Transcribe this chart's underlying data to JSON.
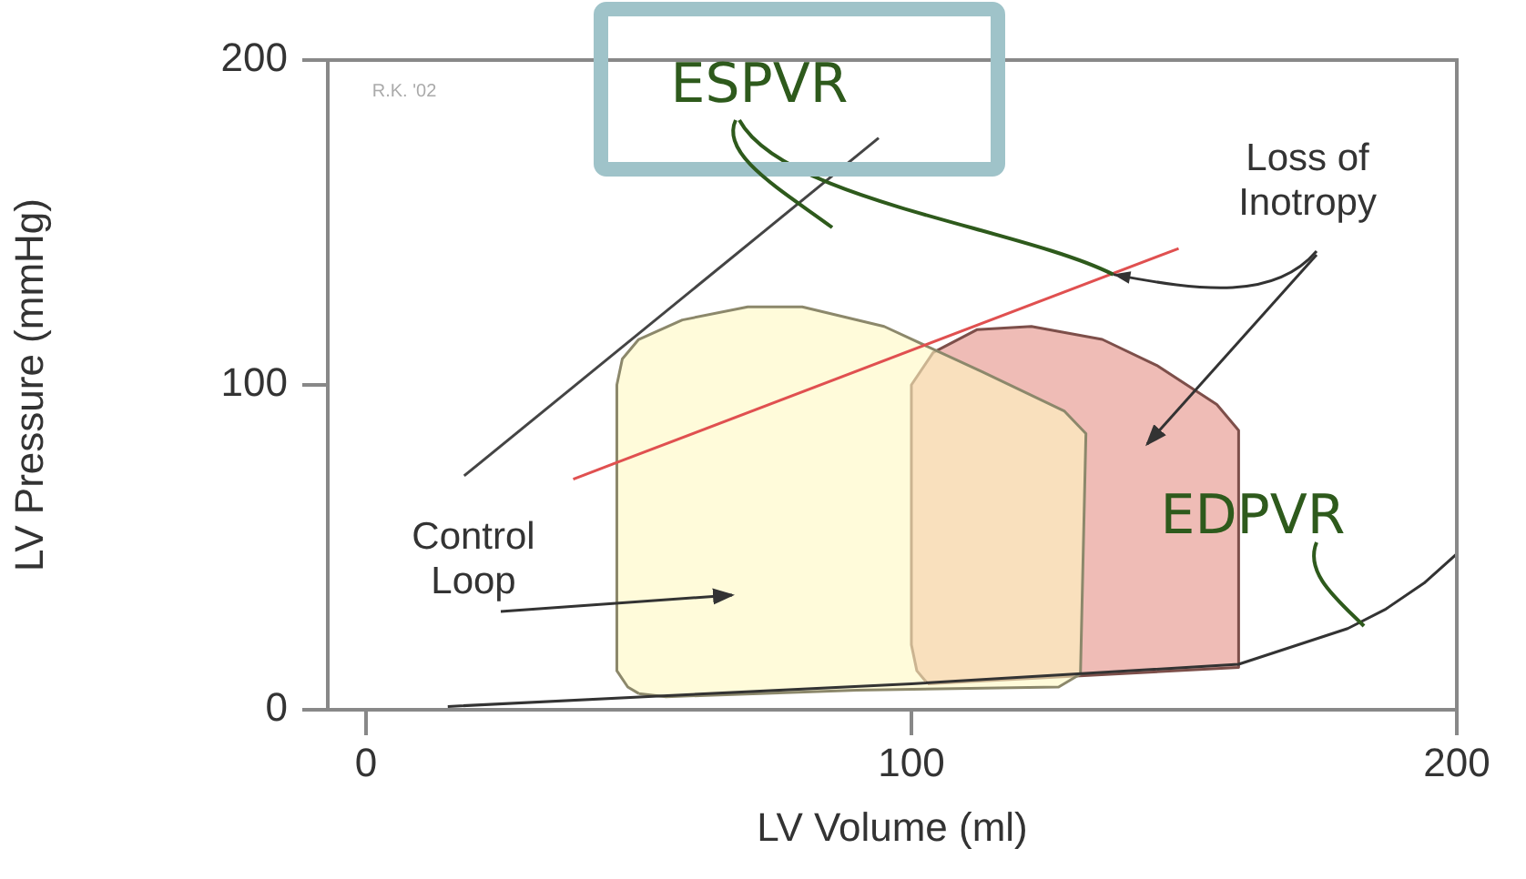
{
  "chart_data": {
    "type": "line",
    "xlabel": "LV Volume (ml)",
    "ylabel": "LV Pressure (mmHg)",
    "xlim": [
      -7,
      200
    ],
    "xticks": [
      0,
      100,
      200
    ],
    "ylim": [
      0,
      200
    ],
    "yticks": [
      0,
      100,
      200
    ],
    "grid": false,
    "legend": false,
    "marker": "none",
    "series": [
      {
        "type": "area",
        "color": "#e48f86",
        "x": [
          103,
          160,
          160,
          156,
          145,
          135,
          122,
          112,
          104,
          100,
          100,
          101,
          103
        ],
        "values": [
          8,
          13,
          86,
          94,
          106,
          114,
          118,
          117,
          110,
          100,
          20,
          12,
          8
        ]
      },
      {
        "type": "area",
        "color": "#fff8c2",
        "x": [
          50,
          55,
          90,
          127,
          131,
          132,
          128,
          113,
          95,
          80,
          70,
          58,
          50,
          47,
          46,
          46,
          48,
          50
        ],
        "values": [
          5,
          4,
          6,
          7,
          11,
          85,
          92,
          104,
          118,
          124,
          124,
          120,
          114,
          108,
          100,
          12,
          7,
          5
        ]
      },
      {
        "color": "#444444",
        "x": [
          18,
          94
        ],
        "values": [
          72,
          176
        ]
      },
      {
        "color": "#e05050",
        "x": [
          38,
          149
        ],
        "values": [
          71,
          142
        ]
      },
      {
        "color": "#333333",
        "x": [
          15,
          51,
          100,
          160,
          180,
          187,
          194,
          200
        ],
        "values": [
          1,
          4,
          8,
          14,
          25,
          31,
          39,
          48
        ]
      }
    ],
    "annotations": [
      "Control Loop",
      {
        "text": "Loss of Inotropy",
        "x": 137,
        "y": 134
      },
      {
        "text": "ESPVR",
        "x": 137,
        "y": 134
      },
      "EDPVR",
      "R.K. '02"
    ]
  }
}
